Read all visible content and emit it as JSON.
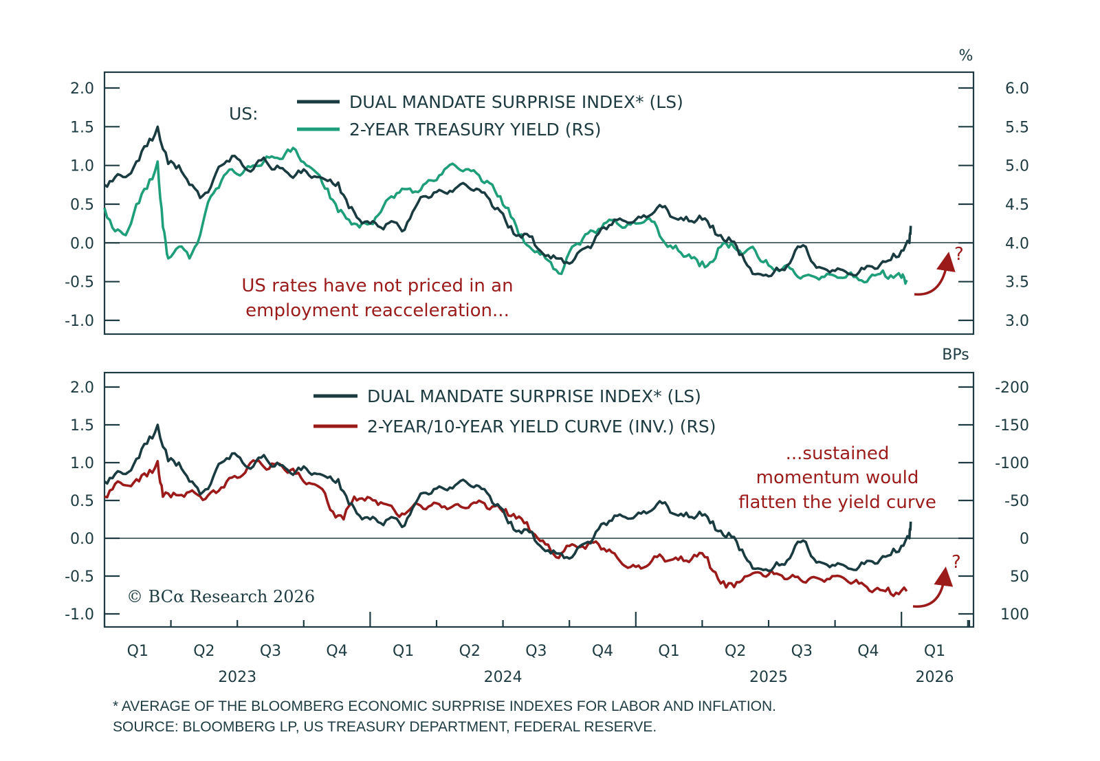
{
  "chart_data": [
    {
      "type": "line",
      "panel": "top",
      "title": "US:",
      "left_axis": {
        "label": "",
        "ylim": [
          -1.0,
          2.0
        ],
        "ticks": [
          "2.0",
          "1.5",
          "1.0",
          "0.5",
          "0.0",
          "-0.5",
          "-1.0"
        ]
      },
      "right_axis": {
        "label": "%",
        "ylim": [
          3.0,
          6.0
        ],
        "ticks": [
          "6.0",
          "5.5",
          "5.0",
          "4.5",
          "4.0",
          "3.5",
          "3.0"
        ]
      },
      "legend": [
        "DUAL MANDATE SURPRISE INDEX* (LS)",
        "2-YEAR TREASURY YIELD (RS)"
      ],
      "legend_placement": "top-center",
      "annotation": [
        "US rates have not priced in an",
        "employment reacceleration..."
      ],
      "question_mark": "?",
      "x_range": [
        "2023-01",
        "2026-01"
      ],
      "series": [
        {
          "name": "DUAL MANDATE SURPRISE INDEX* (LS)",
          "color": "#1a3c40",
          "axis": "left",
          "x": [
            2023.0,
            2023.04,
            2023.08,
            2023.12,
            2023.16,
            2023.2,
            2023.24,
            2023.28,
            2023.32,
            2023.36,
            2023.4,
            2023.44,
            2023.48,
            2023.52,
            2023.56,
            2023.6,
            2023.64,
            2023.68,
            2023.72,
            2023.76,
            2023.8,
            2023.84,
            2023.88,
            2023.92,
            2023.96,
            2024.0,
            2024.04,
            2024.08,
            2024.12,
            2024.16,
            2024.2,
            2024.24,
            2024.28,
            2024.32,
            2024.36,
            2024.4,
            2024.44,
            2024.48,
            2024.52,
            2024.56,
            2024.6,
            2024.64,
            2024.68,
            2024.72,
            2024.76,
            2024.8,
            2024.84,
            2024.88,
            2024.92,
            2024.96,
            2025.0,
            2025.04,
            2025.08,
            2025.12,
            2025.16,
            2025.2,
            2025.24,
            2025.28,
            2025.32,
            2025.36,
            2025.4,
            2025.44,
            2025.48,
            2025.52,
            2025.56,
            2025.6,
            2025.64,
            2025.68,
            2025.72,
            2025.76,
            2025.8,
            2025.84,
            2025.88,
            2025.92,
            2025.96,
            2026.0,
            2026.03,
            2026.035
          ],
          "values": [
            0.75,
            0.85,
            0.85,
            1.05,
            1.25,
            1.5,
            1.02,
            1.0,
            0.75,
            0.58,
            0.72,
            1.0,
            1.12,
            1.0,
            0.95,
            1.1,
            0.95,
            0.93,
            0.88,
            0.92,
            0.85,
            0.8,
            0.78,
            0.45,
            0.3,
            0.25,
            0.2,
            0.28,
            0.15,
            0.4,
            0.6,
            0.65,
            0.65,
            0.7,
            0.75,
            0.7,
            0.6,
            0.45,
            0.2,
            0.1,
            0.08,
            -0.1,
            -0.2,
            -0.2,
            -0.25,
            -0.08,
            0.0,
            0.2,
            0.3,
            0.28,
            0.3,
            0.33,
            0.45,
            0.42,
            0.3,
            0.28,
            0.35,
            0.2,
            0.1,
            0.02,
            -0.15,
            -0.4,
            -0.42,
            -0.38,
            -0.35,
            -0.1,
            -0.05,
            -0.32,
            -0.35,
            -0.33,
            -0.4,
            -0.38,
            -0.3,
            -0.28,
            -0.22,
            -0.1,
            0.0,
            0.22
          ]
        },
        {
          "name": "2-YEAR TREASURY YIELD (RS)",
          "color": "#1f9e7a",
          "axis": "right",
          "x": [
            2023.0,
            2023.04,
            2023.08,
            2023.12,
            2023.16,
            2023.2,
            2023.22,
            2023.24,
            2023.28,
            2023.32,
            2023.36,
            2023.4,
            2023.44,
            2023.48,
            2023.52,
            2023.56,
            2023.6,
            2023.64,
            2023.68,
            2023.72,
            2023.76,
            2023.8,
            2023.84,
            2023.88,
            2023.92,
            2023.96,
            2024.0,
            2024.04,
            2024.08,
            2024.12,
            2024.16,
            2024.2,
            2024.24,
            2024.28,
            2024.32,
            2024.36,
            2024.4,
            2024.44,
            2024.48,
            2024.52,
            2024.56,
            2024.6,
            2024.64,
            2024.68,
            2024.72,
            2024.76,
            2024.8,
            2024.84,
            2024.88,
            2024.92,
            2024.96,
            2025.0,
            2025.04,
            2025.08,
            2025.12,
            2025.16,
            2025.2,
            2025.24,
            2025.28,
            2025.32,
            2025.36,
            2025.4,
            2025.44,
            2025.48,
            2025.52,
            2025.56,
            2025.6,
            2025.64,
            2025.68,
            2025.72,
            2025.76,
            2025.8,
            2025.84,
            2025.88,
            2025.92,
            2025.96,
            2026.0,
            2026.02
          ],
          "values": [
            4.45,
            4.15,
            4.1,
            4.5,
            4.7,
            5.05,
            4.2,
            3.8,
            3.95,
            3.8,
            4.1,
            4.6,
            4.8,
            4.95,
            4.9,
            5.0,
            5.05,
            5.1,
            5.15,
            5.2,
            5.0,
            4.9,
            4.7,
            4.4,
            4.3,
            4.2,
            4.25,
            4.4,
            4.6,
            4.7,
            4.65,
            4.75,
            4.8,
            4.95,
            5.0,
            4.95,
            4.9,
            4.8,
            4.6,
            4.45,
            4.1,
            3.95,
            3.85,
            3.75,
            3.6,
            3.95,
            4.05,
            4.15,
            4.25,
            4.3,
            4.2,
            4.25,
            4.3,
            4.2,
            3.95,
            3.9,
            3.85,
            3.7,
            3.75,
            3.95,
            4.0,
            3.85,
            3.95,
            3.75,
            3.65,
            3.7,
            3.6,
            3.58,
            3.55,
            3.6,
            3.55,
            3.6,
            3.52,
            3.55,
            3.6,
            3.58,
            3.55,
            3.52
          ]
        }
      ]
    },
    {
      "type": "line",
      "panel": "bottom",
      "left_axis": {
        "label": "",
        "ylim": [
          -1.0,
          2.0
        ],
        "ticks": [
          "2.0",
          "1.5",
          "1.0",
          "0.5",
          "0.0",
          "-0.5",
          "-1.0"
        ]
      },
      "right_axis": {
        "label": "BPs",
        "ylim": [
          100,
          -200
        ],
        "inverted": true,
        "ticks": [
          "-200",
          "-150",
          "-100",
          "-50",
          "0",
          "50",
          "100"
        ]
      },
      "legend": [
        "DUAL MANDATE SURPRISE INDEX* (LS)",
        "2-YEAR/10-YEAR YIELD CURVE (INV.) (RS)"
      ],
      "legend_placement": "top-center",
      "annotation": [
        "...sustained",
        "momentum would",
        "flatten the yield curve"
      ],
      "question_mark": "?",
      "x_range": [
        "2023-01",
        "2026-01"
      ],
      "series": [
        {
          "name": "DUAL MANDATE SURPRISE INDEX* (LS)",
          "color": "#1a3c40",
          "axis": "left",
          "x": [
            2023.0,
            2023.04,
            2023.08,
            2023.12,
            2023.16,
            2023.2,
            2023.24,
            2023.28,
            2023.32,
            2023.36,
            2023.4,
            2023.44,
            2023.48,
            2023.52,
            2023.56,
            2023.6,
            2023.64,
            2023.68,
            2023.72,
            2023.76,
            2023.8,
            2023.84,
            2023.88,
            2023.92,
            2023.96,
            2024.0,
            2024.04,
            2024.08,
            2024.12,
            2024.16,
            2024.2,
            2024.24,
            2024.28,
            2024.32,
            2024.36,
            2024.4,
            2024.44,
            2024.48,
            2024.52,
            2024.56,
            2024.6,
            2024.64,
            2024.68,
            2024.72,
            2024.76,
            2024.8,
            2024.84,
            2024.88,
            2024.92,
            2024.96,
            2025.0,
            2025.04,
            2025.08,
            2025.12,
            2025.16,
            2025.2,
            2025.24,
            2025.28,
            2025.32,
            2025.36,
            2025.4,
            2025.44,
            2025.48,
            2025.52,
            2025.56,
            2025.6,
            2025.64,
            2025.68,
            2025.72,
            2025.76,
            2025.8,
            2025.84,
            2025.88,
            2025.92,
            2025.96,
            2026.0,
            2026.03,
            2026.035
          ],
          "values": [
            0.75,
            0.85,
            0.85,
            1.05,
            1.25,
            1.5,
            1.02,
            1.0,
            0.75,
            0.58,
            0.72,
            1.0,
            1.12,
            1.0,
            0.95,
            1.1,
            0.95,
            0.93,
            0.88,
            0.92,
            0.85,
            0.8,
            0.78,
            0.45,
            0.3,
            0.25,
            0.2,
            0.28,
            0.15,
            0.4,
            0.6,
            0.65,
            0.65,
            0.7,
            0.75,
            0.7,
            0.6,
            0.45,
            0.2,
            0.1,
            0.08,
            -0.1,
            -0.2,
            -0.2,
            -0.25,
            -0.08,
            0.0,
            0.2,
            0.3,
            0.28,
            0.3,
            0.33,
            0.45,
            0.42,
            0.3,
            0.28,
            0.35,
            0.2,
            0.1,
            0.02,
            -0.15,
            -0.4,
            -0.42,
            -0.38,
            -0.35,
            -0.1,
            -0.05,
            -0.32,
            -0.35,
            -0.33,
            -0.4,
            -0.38,
            -0.3,
            -0.28,
            -0.22,
            -0.1,
            0.0,
            0.22
          ]
        },
        {
          "name": "2-YEAR/10-YEAR YIELD CURVE (INV.) (RS)",
          "color": "#9b1b1b",
          "axis": "right",
          "x": [
            2023.0,
            2023.04,
            2023.08,
            2023.12,
            2023.16,
            2023.2,
            2023.22,
            2023.26,
            2023.3,
            2023.34,
            2023.38,
            2023.42,
            2023.46,
            2023.5,
            2023.54,
            2023.58,
            2023.62,
            2023.66,
            2023.7,
            2023.74,
            2023.78,
            2023.82,
            2023.86,
            2023.9,
            2023.94,
            2023.98,
            2024.02,
            2024.06,
            2024.1,
            2024.14,
            2024.18,
            2024.22,
            2024.26,
            2024.3,
            2024.34,
            2024.38,
            2024.42,
            2024.46,
            2024.5,
            2024.54,
            2024.58,
            2024.62,
            2024.66,
            2024.7,
            2024.74,
            2024.78,
            2024.82,
            2024.86,
            2024.9,
            2024.94,
            2024.98,
            2025.02,
            2025.06,
            2025.1,
            2025.14,
            2025.18,
            2025.22,
            2025.26,
            2025.3,
            2025.34,
            2025.38,
            2025.42,
            2025.46,
            2025.5,
            2025.54,
            2025.58,
            2025.62,
            2025.66,
            2025.7,
            2025.74,
            2025.78,
            2025.82,
            2025.86,
            2025.9,
            2025.94,
            2025.98,
            2026.02
          ],
          "values": [
            -55,
            -72,
            -70,
            -78,
            -82,
            -102,
            -55,
            -60,
            -55,
            -60,
            -52,
            -60,
            -75,
            -80,
            -95,
            -103,
            -92,
            -98,
            -90,
            -80,
            -72,
            -65,
            -35,
            -25,
            -55,
            -50,
            -50,
            -45,
            -32,
            -35,
            -45,
            -42,
            -45,
            -40,
            -42,
            -45,
            -48,
            -42,
            -35,
            -32,
            -20,
            -5,
            8,
            25,
            10,
            12,
            8,
            8,
            15,
            30,
            38,
            40,
            30,
            25,
            28,
            30,
            22,
            25,
            45,
            65,
            58,
            50,
            45,
            48,
            48,
            52,
            55,
            52,
            55,
            50,
            52,
            58,
            62,
            68,
            70,
            72,
            70
          ]
        }
      ]
    }
  ],
  "x_axis": {
    "quarter_labels": [
      "Q1",
      "Q2",
      "Q3",
      "Q4",
      "Q1",
      "Q2",
      "Q3",
      "Q4",
      "Q1",
      "Q2",
      "Q3",
      "Q4",
      "Q1"
    ],
    "year_labels": [
      "2023",
      "2024",
      "2025",
      "2026"
    ]
  },
  "top_panel": {
    "region_label": "US:",
    "right_unit": "%",
    "legend": [
      {
        "label": "DUAL MANDATE SURPRISE INDEX* (LS)",
        "color": "#1a3c40"
      },
      {
        "label": "2-YEAR TREASURY YIELD (RS)",
        "color": "#1f9e7a"
      }
    ],
    "annotation_line1": "US rates have not priced in an",
    "annotation_line2": "employment reacceleration...",
    "question_mark": "?",
    "left_ticks": [
      "2.0",
      "1.5",
      "1.0",
      "0.5",
      "0.0",
      "-0.5",
      "-1.0"
    ],
    "right_ticks": [
      "6.0",
      "5.5",
      "5.0",
      "4.5",
      "4.0",
      "3.5",
      "3.0"
    ]
  },
  "bottom_panel": {
    "right_unit": "BPs",
    "legend": [
      {
        "label": "DUAL MANDATE SURPRISE INDEX* (LS)",
        "color": "#1a3c40"
      },
      {
        "label": "2-YEAR/10-YEAR YIELD CURVE (INV.) (RS)",
        "color": "#9b1b1b"
      }
    ],
    "annotation_line1": "...sustained",
    "annotation_line2": "momentum would",
    "annotation_line3": "flatten the yield curve",
    "question_mark": "?",
    "copyright": "© BCα Research 2026",
    "left_ticks": [
      "2.0",
      "1.5",
      "1.0",
      "0.5",
      "0.0",
      "-0.5",
      "-1.0"
    ],
    "right_ticks": [
      "-200",
      "-150",
      "-100",
      "-50",
      "0",
      "50",
      "100"
    ]
  },
  "footnotes": {
    "note": "* AVERAGE OF THE BLOOMBERG ECONOMIC SURPRISE INDEXES FOR LABOR AND INFLATION.",
    "source": "SOURCE: BLOOMBERG LP, US TREASURY DEPARTMENT, FEDERAL RESERVE."
  },
  "colors": {
    "axis": "#1d3b40",
    "surprise_index": "#1a3c40",
    "treasury_yield": "#1f9e7a",
    "yield_curve": "#9b1b1b",
    "annotation": "#9b1b1b"
  }
}
